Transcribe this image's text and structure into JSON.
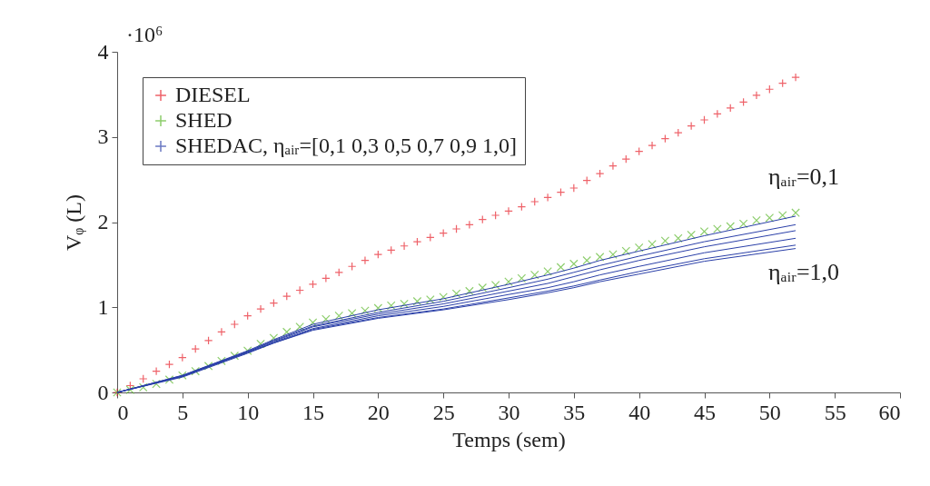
{
  "chart_data": {
    "type": "line",
    "xlabel": "Temps (sem)",
    "ylabel": "Vᵩ (L)",
    "xlim": [
      0,
      60
    ],
    "xticks": [
      0,
      5,
      10,
      15,
      20,
      25,
      30,
      35,
      40,
      45,
      50,
      55,
      60
    ],
    "ylim": [
      0,
      4
    ],
    "yticks": [
      0,
      1,
      2,
      3,
      4
    ],
    "grid": false,
    "legend": "top left",
    "line_style": "solid",
    "annotations": [
      "·10⁶",
      "ηₐᵢᵣ=0,1",
      "ηₐᵢᵣ=1,0"
    ],
    "series": [
      {
        "name": "DIESEL",
        "type": "scatter",
        "marker": "cross",
        "color": "#e8202a",
        "x": [
          0,
          1,
          2,
          3,
          4,
          5,
          6,
          7,
          8,
          9,
          10,
          11,
          12,
          13,
          14,
          15,
          16,
          17,
          18,
          19,
          20,
          21,
          22,
          23,
          24,
          25,
          26,
          27,
          28,
          29,
          30,
          31,
          32,
          33,
          34,
          35,
          36,
          37,
          38,
          39,
          40,
          41,
          42,
          43,
          44,
          45,
          46,
          47,
          48,
          49,
          50,
          51,
          52
        ],
        "values": [
          0,
          0.08,
          0.16,
          0.25,
          0.33,
          0.41,
          0.51,
          0.61,
          0.71,
          0.8,
          0.9,
          0.98,
          1.05,
          1.13,
          1.2,
          1.27,
          1.34,
          1.41,
          1.48,
          1.55,
          1.62,
          1.67,
          1.72,
          1.77,
          1.82,
          1.87,
          1.92,
          1.97,
          2.03,
          2.08,
          2.13,
          2.18,
          2.24,
          2.29,
          2.35,
          2.4,
          2.49,
          2.57,
          2.66,
          2.74,
          2.83,
          2.9,
          2.98,
          3.05,
          3.13,
          3.2,
          3.27,
          3.34,
          3.41,
          3.49,
          3.56,
          3.63,
          3.7
        ]
      },
      {
        "name": "SHED",
        "type": "scatter",
        "marker": "x",
        "color": "#5cb82e",
        "x": [
          0,
          1,
          2,
          3,
          4,
          5,
          6,
          7,
          8,
          9,
          10,
          11,
          12,
          13,
          14,
          15,
          16,
          17,
          18,
          19,
          20,
          21,
          22,
          23,
          24,
          25,
          26,
          27,
          28,
          29,
          30,
          31,
          32,
          33,
          34,
          35,
          36,
          37,
          38,
          39,
          40,
          41,
          42,
          43,
          44,
          45,
          46,
          47,
          48,
          49,
          50,
          51,
          52
        ],
        "values": [
          0,
          0.03,
          0.06,
          0.1,
          0.15,
          0.2,
          0.25,
          0.31,
          0.37,
          0.43,
          0.49,
          0.57,
          0.64,
          0.71,
          0.77,
          0.82,
          0.86,
          0.9,
          0.93,
          0.96,
          0.99,
          1.02,
          1.04,
          1.07,
          1.09,
          1.12,
          1.16,
          1.19,
          1.23,
          1.26,
          1.3,
          1.34,
          1.38,
          1.42,
          1.47,
          1.51,
          1.55,
          1.59,
          1.62,
          1.66,
          1.7,
          1.74,
          1.78,
          1.81,
          1.85,
          1.89,
          1.92,
          1.95,
          1.98,
          2.02,
          2.05,
          2.08,
          2.11
        ]
      },
      {
        "name": "SHEDAC, ηₐᵢᵣ=[0,1 0,3 0,5 0,7 0,9 1,0]",
        "color": "#2a3fa8",
        "x": [
          0,
          5,
          10,
          12,
          15,
          20,
          25,
          30,
          33,
          35,
          37,
          40,
          45,
          52
        ],
        "values": [
          0,
          0.2,
          0.49,
          0.62,
          0.8,
          0.97,
          1.1,
          1.27,
          1.38,
          1.46,
          1.55,
          1.66,
          1.84,
          2.07
        ]
      },
      {
        "color": "#2a3fa8",
        "x": [
          0,
          5,
          10,
          12,
          15,
          20,
          25,
          30,
          33,
          35,
          37,
          40,
          45,
          52
        ],
        "values": [
          0,
          0.2,
          0.48,
          0.61,
          0.78,
          0.94,
          1.07,
          1.23,
          1.33,
          1.41,
          1.49,
          1.6,
          1.77,
          1.97
        ]
      },
      {
        "color": "#2a3fa8",
        "x": [
          0,
          5,
          10,
          12,
          15,
          20,
          25,
          30,
          33,
          35,
          37,
          40,
          45,
          52
        ],
        "values": [
          0,
          0.19,
          0.48,
          0.6,
          0.77,
          0.92,
          1.04,
          1.19,
          1.28,
          1.36,
          1.44,
          1.55,
          1.71,
          1.9
        ]
      },
      {
        "color": "#2a3fa8",
        "x": [
          0,
          5,
          10,
          12,
          15,
          20,
          25,
          30,
          33,
          35,
          37,
          40,
          45,
          52
        ],
        "values": [
          0,
          0.19,
          0.47,
          0.59,
          0.75,
          0.9,
          1.01,
          1.15,
          1.23,
          1.3,
          1.38,
          1.48,
          1.64,
          1.81
        ]
      },
      {
        "color": "#2a3fa8",
        "x": [
          0,
          5,
          10,
          12,
          15,
          20,
          25,
          30,
          33,
          35,
          37,
          40,
          45,
          52
        ],
        "values": [
          0,
          0.19,
          0.47,
          0.58,
          0.74,
          0.88,
          0.98,
          1.11,
          1.19,
          1.25,
          1.32,
          1.42,
          1.57,
          1.73
        ]
      },
      {
        "color": "#2a3fa8",
        "x": [
          0,
          5,
          10,
          12,
          15,
          20,
          25,
          30,
          33,
          35,
          37,
          40,
          45,
          52
        ],
        "values": [
          0,
          0.18,
          0.46,
          0.58,
          0.73,
          0.87,
          0.97,
          1.09,
          1.17,
          1.23,
          1.3,
          1.39,
          1.54,
          1.69
        ]
      }
    ]
  }
}
